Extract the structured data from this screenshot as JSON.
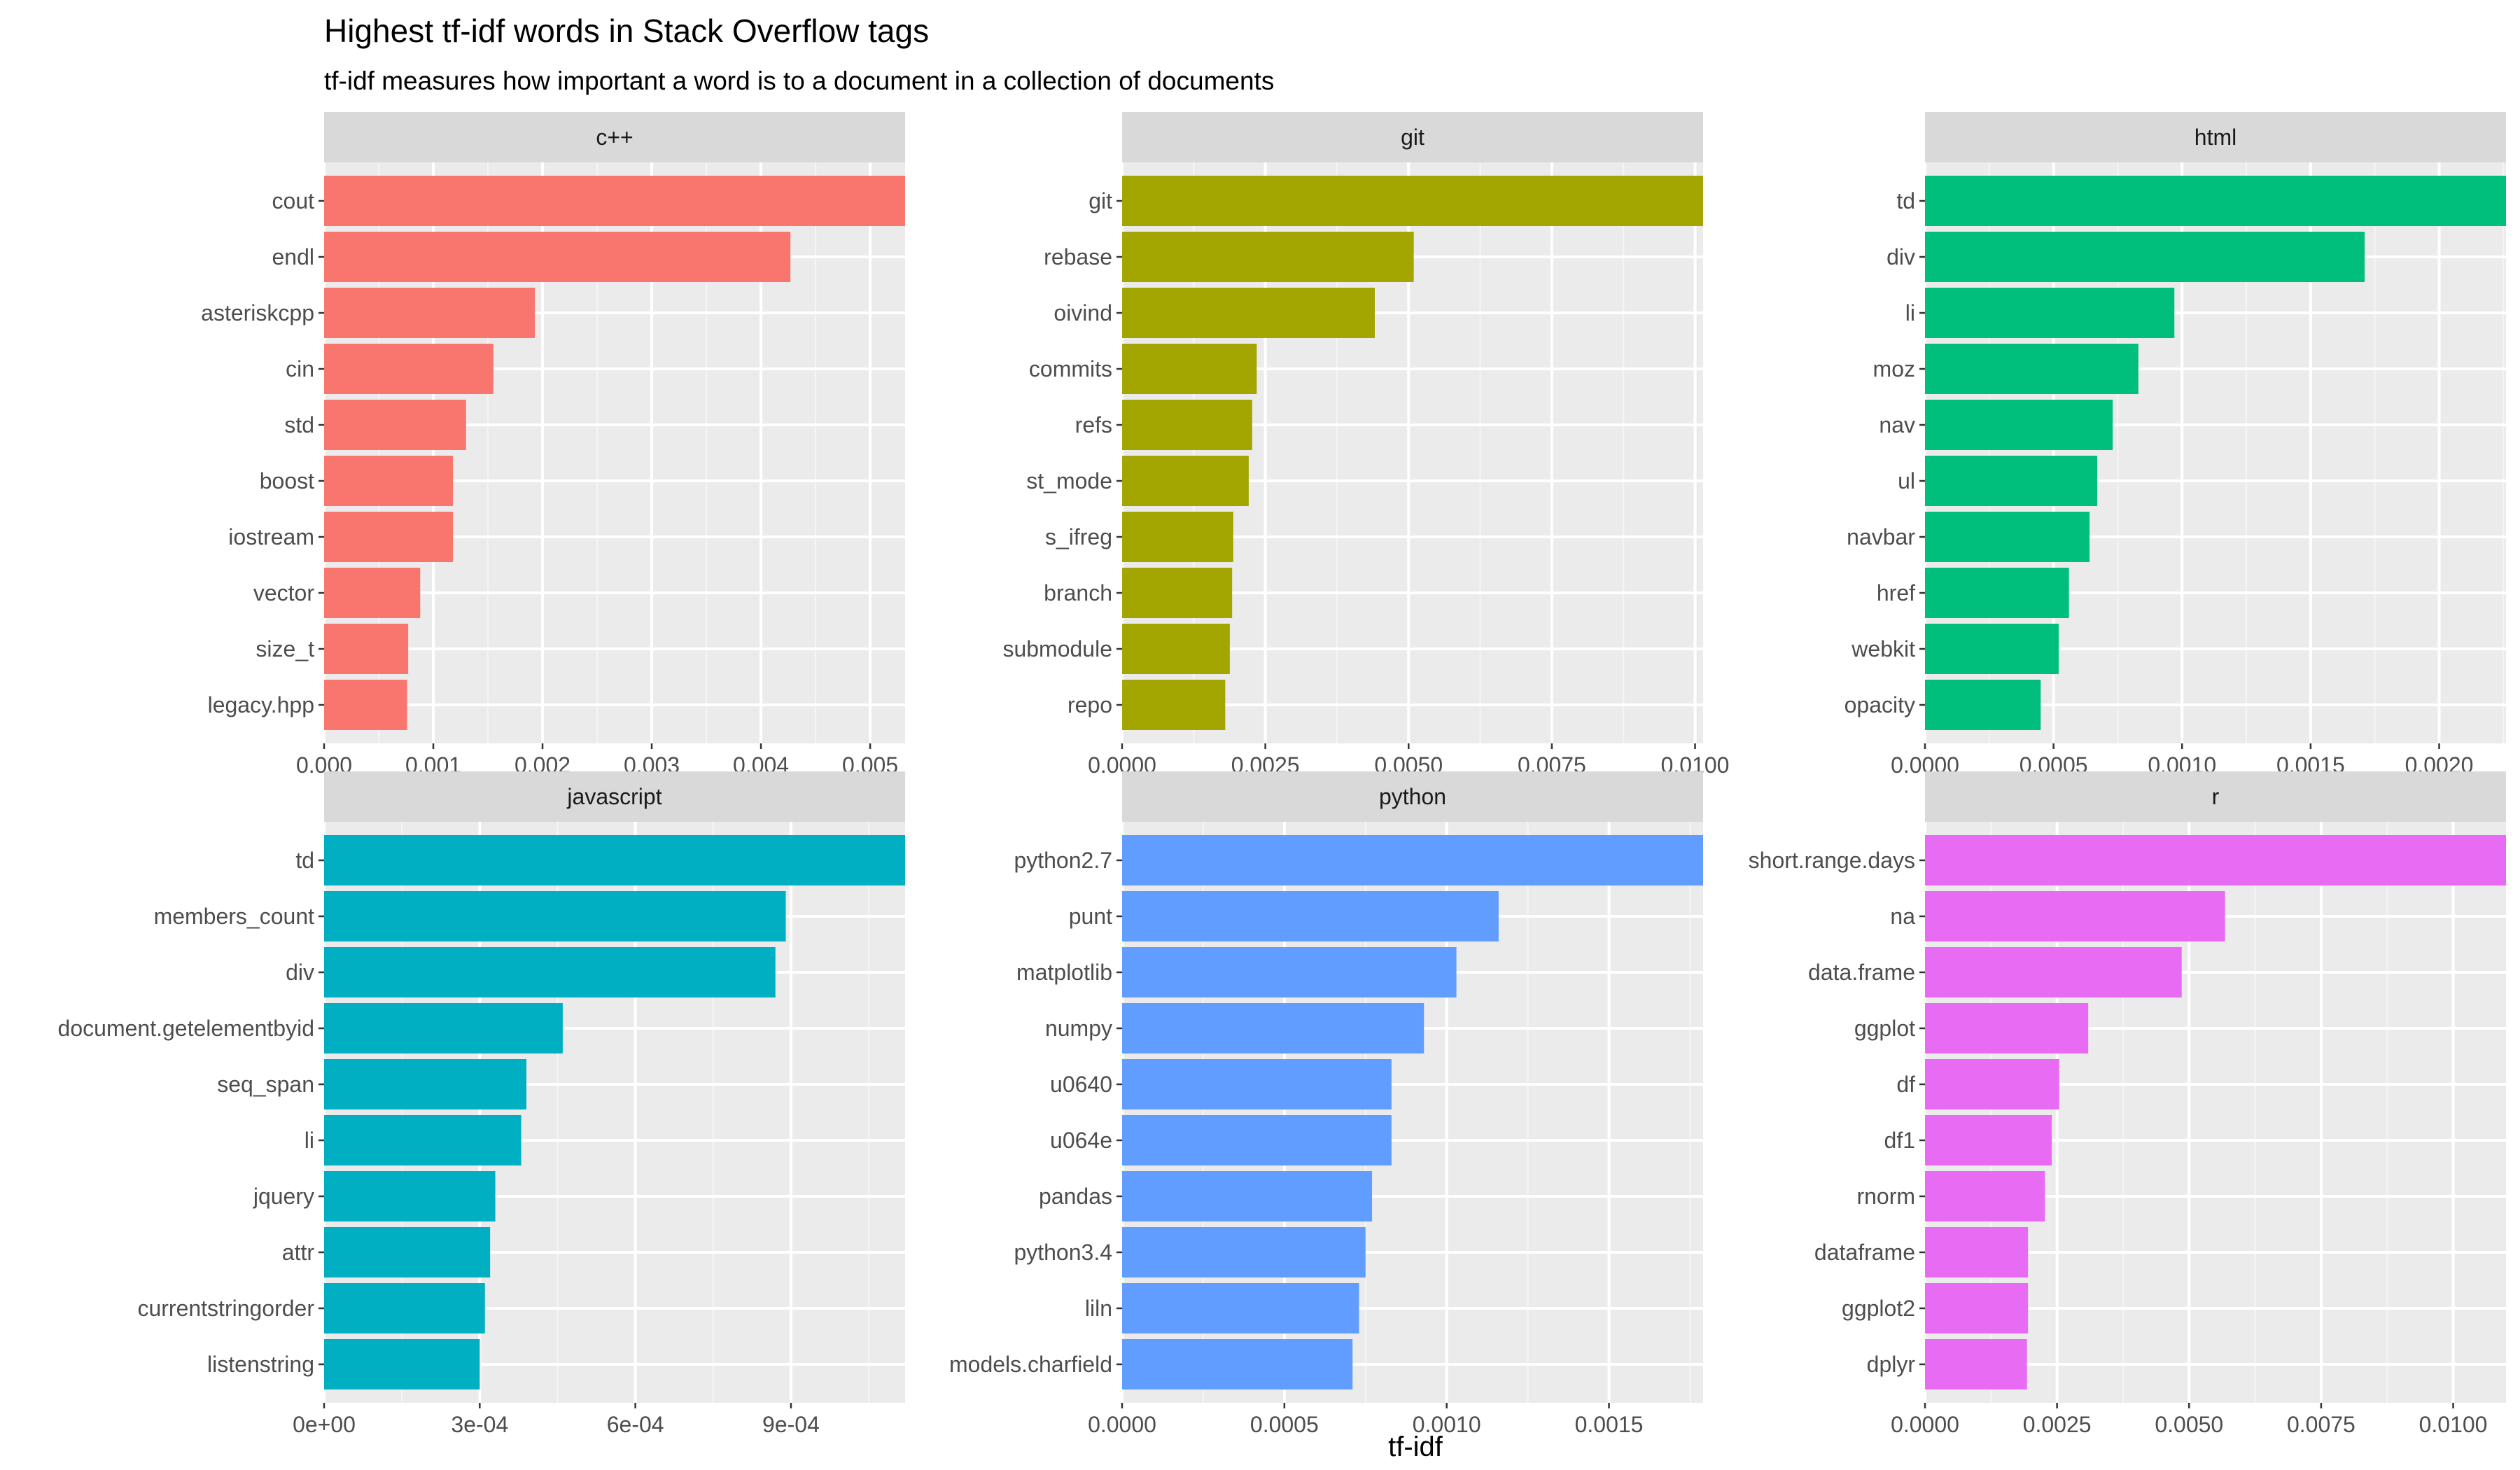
{
  "chart_data": {
    "type": "bar",
    "orientation": "horizontal",
    "title": "Highest tf-idf words in Stack Overflow tags",
    "subtitle": "tf-idf measures how important a word is to a document in a collection of documents",
    "xlabel": "tf-idf",
    "ylabel": "",
    "grid": true,
    "legend": "none",
    "panels": [
      {
        "facet": "c++",
        "color": "#F8766D",
        "xlim": [
          0,
          0.00532
        ],
        "xticks": [
          0,
          0.001,
          0.002,
          0.003,
          0.004,
          0.005
        ],
        "xtick_labels": [
          "0.000",
          "0.001",
          "0.002",
          "0.003",
          "0.004",
          "0.005"
        ],
        "categories": [
          "cout",
          "endl",
          "asteriskcpp",
          "cin",
          "std",
          "boost",
          "iostream",
          "vector",
          "size_t",
          "legacy.hpp"
        ],
        "values": [
          0.00532,
          0.00427,
          0.00193,
          0.00155,
          0.0013,
          0.00118,
          0.00118,
          0.00088,
          0.00077,
          0.00076
        ]
      },
      {
        "facet": "git",
        "color": "#A3A500",
        "xlim": [
          0,
          0.01014
        ],
        "xticks": [
          0,
          0.0025,
          0.005,
          0.0075,
          0.01
        ],
        "xtick_labels": [
          "0.0000",
          "0.0025",
          "0.0050",
          "0.0075",
          "0.0100"
        ],
        "categories": [
          "git",
          "rebase",
          "oivind",
          "commits",
          "refs",
          "st_mode",
          "s_ifreg",
          "branch",
          "submodule",
          "repo"
        ],
        "values": [
          0.01014,
          0.00509,
          0.00441,
          0.00235,
          0.00227,
          0.00221,
          0.00194,
          0.00192,
          0.00188,
          0.0018
        ]
      },
      {
        "facet": "html",
        "color": "#00BF7D",
        "xlim": [
          0,
          0.00226
        ],
        "xticks": [
          0,
          0.0005,
          0.001,
          0.0015,
          0.002
        ],
        "xtick_labels": [
          "0.0000",
          "0.0005",
          "0.0010",
          "0.0015",
          "0.0020"
        ],
        "categories": [
          "td",
          "div",
          "li",
          "moz",
          "nav",
          "ul",
          "navbar",
          "href",
          "webkit",
          "opacity"
        ],
        "values": [
          0.00226,
          0.00171,
          0.00097,
          0.00083,
          0.00073,
          0.00067,
          0.00064,
          0.00056,
          0.00052,
          0.00045
        ]
      },
      {
        "facet": "javascript",
        "color": "#00B0C2",
        "xlim": [
          0,
          0.00112
        ],
        "xticks": [
          0,
          0.0003,
          0.0006,
          0.0009
        ],
        "xtick_labels": [
          "0e+00",
          "3e-04",
          "6e-04",
          "9e-04"
        ],
        "categories": [
          "td",
          "members_count",
          "div",
          "document.getelementbyid",
          "seq_span",
          "li",
          "jquery",
          "attr",
          "currentstringorder",
          "listenstring"
        ],
        "values": [
          0.00112,
          0.00089,
          0.00087,
          0.00046,
          0.00039,
          0.00038,
          0.00033,
          0.00032,
          0.00031,
          0.0003
        ]
      },
      {
        "facet": "python",
        "color": "#619CFF",
        "xlim": [
          0,
          0.00179
        ],
        "xticks": [
          0,
          0.0005,
          0.001,
          0.0015
        ],
        "xtick_labels": [
          "0.0000",
          "0.0005",
          "0.0010",
          "0.0015"
        ],
        "categories": [
          "python2.7",
          "punt",
          "matplotlib",
          "numpy",
          "u0640",
          "u064e",
          "pandas",
          "python3.4",
          "liln",
          "models.charfield"
        ],
        "values": [
          0.00179,
          0.00116,
          0.00103,
          0.00093,
          0.00083,
          0.00083,
          0.00077,
          0.00075,
          0.00073,
          0.00071
        ]
      },
      {
        "facet": "r",
        "color": "#E76BF3",
        "xlim": [
          0,
          0.011
        ],
        "xticks": [
          0,
          0.0025,
          0.005,
          0.0075,
          0.01
        ],
        "xtick_labels": [
          "0.0000",
          "0.0025",
          "0.0050",
          "0.0075",
          "0.0100"
        ],
        "categories": [
          "short.range.days",
          "na",
          "data.frame",
          "ggplot",
          "df",
          "df1",
          "rnorm",
          "dataframe",
          "ggplot2",
          "dplyr"
        ],
        "values": [
          0.011,
          0.00568,
          0.00486,
          0.00309,
          0.00254,
          0.0024,
          0.00227,
          0.00195,
          0.00195,
          0.00193
        ]
      }
    ]
  }
}
